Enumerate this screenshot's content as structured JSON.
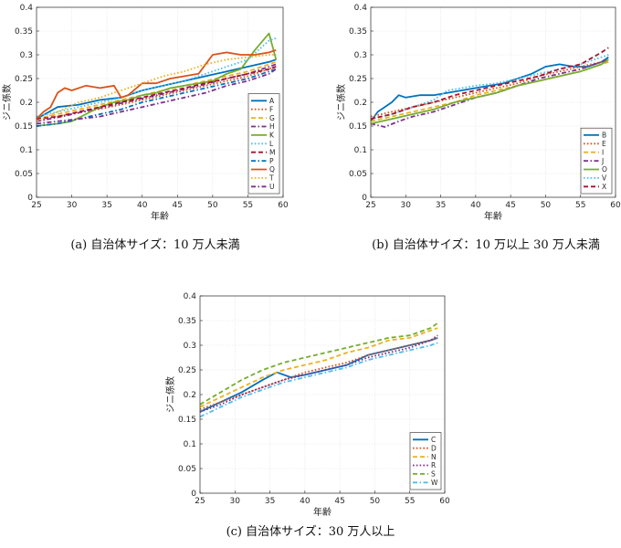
{
  "chart_data": [
    {
      "type": "line",
      "caption": "(a) 自治体サイズ：10 万人未満",
      "xlabel": "年齢",
      "ylabel": "ジニ係数",
      "xlim": [
        25,
        60
      ],
      "ylim": [
        0,
        0.4
      ],
      "xticks": [
        25,
        30,
        35,
        40,
        45,
        50,
        55,
        60
      ],
      "yticks": [
        0,
        0.05,
        0.1,
        0.15,
        0.2,
        0.25,
        0.3,
        0.35,
        0.4
      ],
      "grid": true,
      "legend": "bottom-right",
      "series": [
        {
          "name": "A",
          "color": "#0072bd",
          "dash": "solid",
          "x": [
            25,
            28,
            31,
            34,
            37,
            40,
            43,
            46,
            49,
            52,
            55,
            58,
            59
          ],
          "y": [
            0.165,
            0.19,
            0.195,
            0.205,
            0.21,
            0.225,
            0.235,
            0.245,
            0.255,
            0.265,
            0.275,
            0.285,
            0.29
          ]
        },
        {
          "name": "F",
          "color": "#d95319",
          "dash": "dot",
          "x": [
            25,
            28,
            31,
            34,
            37,
            40,
            43,
            46,
            49,
            52,
            55,
            58,
            59
          ],
          "y": [
            0.16,
            0.17,
            0.178,
            0.186,
            0.195,
            0.205,
            0.215,
            0.225,
            0.235,
            0.245,
            0.255,
            0.27,
            0.275
          ]
        },
        {
          "name": "G",
          "color": "#edb120",
          "dash": "dash",
          "x": [
            25,
            28,
            31,
            34,
            37,
            40,
            43,
            46,
            49,
            52,
            55,
            58,
            59
          ],
          "y": [
            0.165,
            0.175,
            0.185,
            0.195,
            0.205,
            0.215,
            0.225,
            0.235,
            0.245,
            0.255,
            0.265,
            0.28,
            0.285
          ]
        },
        {
          "name": "H",
          "color": "#7e2f8e",
          "dash": "dashdot",
          "x": [
            25,
            28,
            31,
            34,
            37,
            40,
            43,
            46,
            49,
            52,
            55,
            58,
            59
          ],
          "y": [
            0.16,
            0.168,
            0.178,
            0.188,
            0.198,
            0.208,
            0.218,
            0.228,
            0.238,
            0.25,
            0.26,
            0.275,
            0.28
          ]
        },
        {
          "name": "K",
          "color": "#77ac30",
          "dash": "solid",
          "x": [
            25,
            28,
            30,
            32,
            34,
            36,
            38,
            40,
            42,
            44,
            46,
            48,
            50,
            52,
            54,
            56,
            58,
            59
          ],
          "y": [
            0.15,
            0.155,
            0.16,
            0.175,
            0.19,
            0.2,
            0.205,
            0.215,
            0.22,
            0.23,
            0.235,
            0.24,
            0.245,
            0.26,
            0.27,
            0.31,
            0.345,
            0.29
          ]
        },
        {
          "name": "L",
          "color": "#4dbeee",
          "dash": "dot",
          "x": [
            25,
            28,
            31,
            34,
            37,
            40,
            43,
            46,
            49,
            52,
            55,
            58,
            59
          ],
          "y": [
            0.17,
            0.18,
            0.19,
            0.2,
            0.21,
            0.225,
            0.235,
            0.245,
            0.26,
            0.275,
            0.29,
            0.33,
            0.335
          ]
        },
        {
          "name": "M",
          "color": "#a2142f",
          "dash": "dash",
          "x": [
            25,
            28,
            31,
            34,
            37,
            40,
            43,
            46,
            49,
            52,
            55,
            58,
            59
          ],
          "y": [
            0.165,
            0.17,
            0.18,
            0.19,
            0.2,
            0.21,
            0.22,
            0.23,
            0.24,
            0.25,
            0.26,
            0.27,
            0.275
          ]
        },
        {
          "name": "P",
          "color": "#0072bd",
          "dash": "dashdot",
          "x": [
            25,
            28,
            31,
            34,
            37,
            40,
            43,
            46,
            49,
            52,
            55,
            58,
            59
          ],
          "y": [
            0.15,
            0.155,
            0.165,
            0.175,
            0.185,
            0.2,
            0.21,
            0.22,
            0.23,
            0.24,
            0.25,
            0.265,
            0.27
          ]
        },
        {
          "name": "Q",
          "color": "#d95319",
          "dash": "solid",
          "x": [
            25,
            26,
            27,
            28,
            29,
            30,
            32,
            34,
            36,
            37,
            38,
            40,
            42,
            44,
            46,
            48,
            50,
            52,
            54,
            56,
            58,
            59
          ],
          "y": [
            0.165,
            0.18,
            0.19,
            0.22,
            0.23,
            0.225,
            0.235,
            0.23,
            0.235,
            0.21,
            0.215,
            0.24,
            0.24,
            0.25,
            0.255,
            0.26,
            0.3,
            0.305,
            0.3,
            0.3,
            0.305,
            0.31
          ]
        },
        {
          "name": "T",
          "color": "#edb120",
          "dash": "dot",
          "x": [
            25,
            28,
            31,
            34,
            37,
            40,
            43,
            46,
            49,
            52,
            55,
            58,
            59
          ],
          "y": [
            0.16,
            0.18,
            0.2,
            0.21,
            0.225,
            0.24,
            0.255,
            0.265,
            0.28,
            0.29,
            0.295,
            0.3,
            0.3
          ]
        },
        {
          "name": "U",
          "color": "#7e2f8e",
          "dash": "dashdot",
          "x": [
            25,
            28,
            31,
            34,
            37,
            40,
            43,
            46,
            49,
            52,
            55,
            58,
            59
          ],
          "y": [
            0.155,
            0.16,
            0.165,
            0.17,
            0.18,
            0.19,
            0.2,
            0.21,
            0.22,
            0.235,
            0.245,
            0.26,
            0.27
          ]
        }
      ]
    },
    {
      "type": "line",
      "caption": "(b) 自治体サイズ：10 万以上 30 万人未満",
      "xlabel": "年齢",
      "ylabel": "ジニ係数",
      "xlim": [
        25,
        60
      ],
      "ylim": [
        0,
        0.4
      ],
      "xticks": [
        25,
        30,
        35,
        40,
        45,
        50,
        55,
        60
      ],
      "yticks": [
        0,
        0.05,
        0.1,
        0.15,
        0.2,
        0.25,
        0.3,
        0.35,
        0.4
      ],
      "grid": true,
      "legend": "bottom-right",
      "series": [
        {
          "name": "B",
          "color": "#0072bd",
          "dash": "solid",
          "x": [
            25,
            26,
            27,
            28,
            29,
            30,
            32,
            34,
            36,
            38,
            40,
            42,
            44,
            46,
            48,
            50,
            52,
            54,
            56,
            58,
            59
          ],
          "y": [
            0.16,
            0.18,
            0.19,
            0.2,
            0.215,
            0.21,
            0.215,
            0.215,
            0.22,
            0.225,
            0.23,
            0.235,
            0.24,
            0.25,
            0.26,
            0.275,
            0.28,
            0.275,
            0.275,
            0.285,
            0.295
          ]
        },
        {
          "name": "E",
          "color": "#d95319",
          "dash": "dot",
          "x": [
            25,
            28,
            31,
            34,
            37,
            40,
            43,
            46,
            49,
            52,
            55,
            58,
            59
          ],
          "y": [
            0.17,
            0.18,
            0.19,
            0.2,
            0.21,
            0.22,
            0.23,
            0.24,
            0.255,
            0.265,
            0.275,
            0.285,
            0.29
          ]
        },
        {
          "name": "I",
          "color": "#edb120",
          "dash": "dash",
          "x": [
            25,
            28,
            31,
            34,
            37,
            40,
            43,
            46,
            49,
            52,
            55,
            58,
            59
          ],
          "y": [
            0.16,
            0.17,
            0.18,
            0.19,
            0.2,
            0.215,
            0.225,
            0.235,
            0.245,
            0.255,
            0.265,
            0.28,
            0.285
          ]
        },
        {
          "name": "J",
          "color": "#7e2f8e",
          "dash": "dashdot",
          "x": [
            25,
            27,
            29,
            31,
            34,
            37,
            40,
            43,
            46,
            49,
            52,
            55,
            58,
            59
          ],
          "y": [
            0.155,
            0.148,
            0.16,
            0.17,
            0.18,
            0.195,
            0.21,
            0.22,
            0.235,
            0.25,
            0.26,
            0.27,
            0.285,
            0.29
          ]
        },
        {
          "name": "O",
          "color": "#77ac30",
          "dash": "solid",
          "x": [
            25,
            28,
            31,
            34,
            37,
            40,
            43,
            46,
            49,
            52,
            55,
            58,
            59
          ],
          "y": [
            0.155,
            0.165,
            0.175,
            0.185,
            0.2,
            0.21,
            0.22,
            0.235,
            0.245,
            0.255,
            0.265,
            0.28,
            0.29
          ]
        },
        {
          "name": "V",
          "color": "#4dbeee",
          "dash": "dot",
          "x": [
            25,
            28,
            31,
            34,
            36,
            38,
            40,
            43,
            46,
            49,
            52,
            55,
            58,
            59
          ],
          "y": [
            0.165,
            0.175,
            0.19,
            0.205,
            0.225,
            0.23,
            0.235,
            0.24,
            0.25,
            0.26,
            0.27,
            0.28,
            0.295,
            0.3
          ]
        },
        {
          "name": "X",
          "color": "#a2142f",
          "dash": "dash",
          "x": [
            25,
            28,
            31,
            34,
            37,
            40,
            43,
            46,
            49,
            52,
            55,
            58,
            59
          ],
          "y": [
            0.165,
            0.175,
            0.19,
            0.2,
            0.215,
            0.225,
            0.235,
            0.245,
            0.255,
            0.27,
            0.28,
            0.305,
            0.315
          ]
        }
      ]
    },
    {
      "type": "line",
      "caption": "(c) 自治体サイズ：30 万人以上",
      "xlabel": "年齢",
      "ylabel": "ジニ係数",
      "xlim": [
        25,
        60
      ],
      "ylim": [
        0,
        0.4
      ],
      "xticks": [
        25,
        30,
        35,
        40,
        45,
        50,
        55,
        60
      ],
      "yticks": [
        0,
        0.05,
        0.1,
        0.15,
        0.2,
        0.25,
        0.3,
        0.35,
        0.4
      ],
      "grid": true,
      "legend": "bottom-right",
      "series": [
        {
          "name": "C",
          "color": "#0072bd",
          "dash": "solid",
          "x": [
            25,
            28,
            31,
            34,
            36,
            38,
            40,
            43,
            46,
            49,
            52,
            55,
            58,
            59
          ],
          "y": [
            0.165,
            0.185,
            0.205,
            0.23,
            0.245,
            0.235,
            0.24,
            0.25,
            0.26,
            0.28,
            0.29,
            0.3,
            0.31,
            0.315
          ]
        },
        {
          "name": "D",
          "color": "#d95319",
          "dash": "dot",
          "x": [
            25,
            28,
            31,
            34,
            37,
            40,
            43,
            46,
            49,
            52,
            55,
            58,
            59
          ],
          "y": [
            0.17,
            0.185,
            0.2,
            0.215,
            0.23,
            0.245,
            0.255,
            0.265,
            0.28,
            0.29,
            0.3,
            0.31,
            0.315
          ]
        },
        {
          "name": "N",
          "color": "#edb120",
          "dash": "dash",
          "x": [
            25,
            28,
            31,
            34,
            37,
            40,
            43,
            46,
            49,
            52,
            55,
            58,
            59
          ],
          "y": [
            0.175,
            0.195,
            0.215,
            0.235,
            0.25,
            0.26,
            0.27,
            0.285,
            0.295,
            0.31,
            0.315,
            0.33,
            0.335
          ]
        },
        {
          "name": "R",
          "color": "#7e2f8e",
          "dash": "dot",
          "x": [
            25,
            28,
            31,
            34,
            37,
            40,
            43,
            46,
            49,
            52,
            55,
            58,
            59
          ],
          "y": [
            0.165,
            0.18,
            0.2,
            0.215,
            0.23,
            0.24,
            0.25,
            0.26,
            0.275,
            0.285,
            0.295,
            0.31,
            0.32
          ]
        },
        {
          "name": "S",
          "color": "#77ac30",
          "dash": "dash",
          "x": [
            25,
            28,
            31,
            34,
            37,
            40,
            43,
            46,
            49,
            52,
            55,
            58,
            59
          ],
          "y": [
            0.18,
            0.205,
            0.23,
            0.25,
            0.265,
            0.275,
            0.285,
            0.295,
            0.305,
            0.315,
            0.32,
            0.335,
            0.345
          ]
        },
        {
          "name": "W",
          "color": "#4dbeee",
          "dash": "dashdot",
          "x": [
            25,
            28,
            31,
            34,
            37,
            40,
            43,
            46,
            49,
            52,
            55,
            58,
            59
          ],
          "y": [
            0.155,
            0.175,
            0.195,
            0.21,
            0.225,
            0.235,
            0.245,
            0.255,
            0.27,
            0.28,
            0.29,
            0.3,
            0.305
          ]
        }
      ]
    }
  ]
}
